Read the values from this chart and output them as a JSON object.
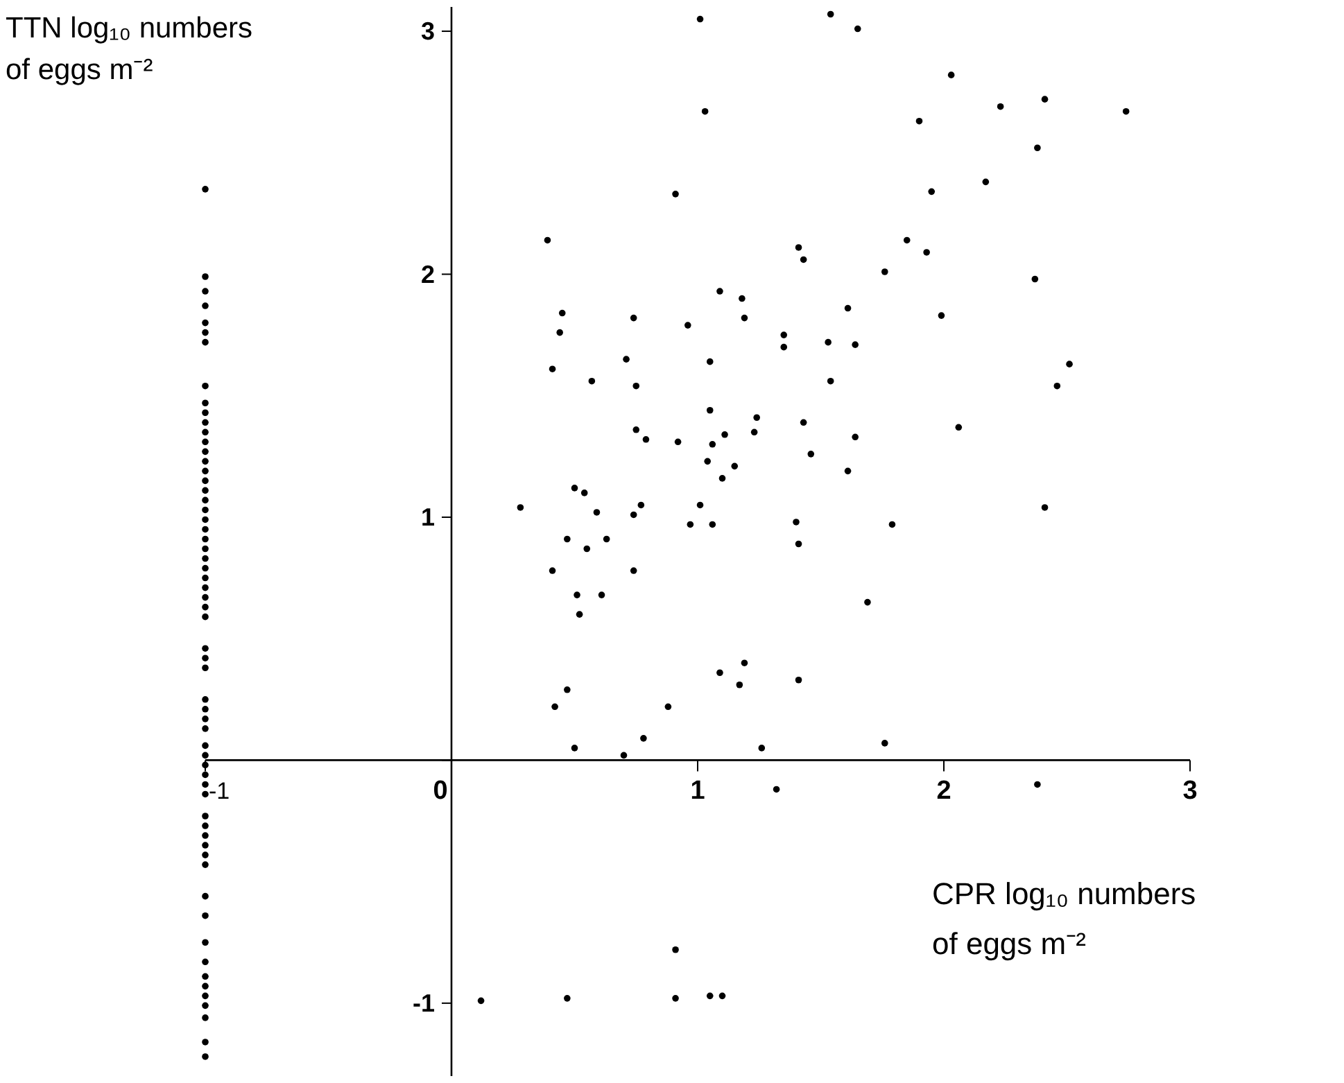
{
  "chart_data": {
    "type": "scatter",
    "xlabel": "CPR log₁₀ numbers of eggs m⁻²",
    "ylabel": "TTN log₁₀ numbers of eggs m⁻²",
    "xlim": [
      -1,
      3
    ],
    "ylim": [
      -1.3,
      3.1
    ],
    "xticks": [
      -1,
      0,
      1,
      2,
      3
    ],
    "yticks": [
      -1,
      {
        "value": 0,
        "label": null
      },
      1,
      2,
      3
    ],
    "grid": false,
    "marker": "circle",
    "series": [
      {
        "color": "#000000",
        "x": [
          -1,
          -1,
          -1,
          -1,
          -1,
          -1,
          -1,
          -1,
          -1,
          -1,
          -1,
          -1,
          -1,
          -1,
          -1,
          -1,
          -1,
          -1,
          -1,
          -1,
          -1,
          -1,
          -1,
          -1,
          -1,
          -1,
          -1,
          -1,
          -1,
          -1,
          -1,
          -1,
          -1,
          -1,
          -1,
          -1,
          -1,
          -1,
          -1,
          -1,
          -1,
          -1,
          -1,
          -1,
          -1,
          -1,
          -1,
          -1,
          -1,
          -1,
          -1,
          -1,
          -1,
          -1,
          -1,
          -1,
          -1,
          -1,
          -1,
          -1,
          -1,
          1.01,
          1.54,
          1.65,
          2.03,
          2.23,
          2.41,
          2.74,
          1.03,
          1.9,
          2.38,
          2.17,
          1.95,
          0.91,
          1.85,
          1.93,
          1.76,
          2.37,
          1.41,
          1.43,
          1.09,
          1.18,
          1.19,
          0.96,
          1.61,
          1.99,
          1.35,
          1.35,
          1.53,
          1.64,
          1.05,
          2.51,
          2.46,
          1.54,
          1.05,
          1.24,
          1.43,
          0.92,
          1.06,
          1.11,
          1.23,
          1.64,
          2.06,
          1.46,
          1.04,
          1.15,
          1.1,
          1.61,
          1.01,
          2.41,
          0.97,
          1.06,
          1.4,
          1.79,
          0.39,
          0.45,
          0.44,
          0.41,
          0.74,
          0.71,
          0.57,
          0.75,
          0.75,
          0.79,
          0.28,
          0.5,
          0.54,
          0.59,
          0.77,
          0.74,
          0.47,
          0.63,
          0.55,
          0.41,
          0.74,
          0.51,
          0.61,
          0.52,
          0.47,
          0.42,
          0.88,
          0.78,
          0.5,
          0.7,
          0.12,
          0.47,
          1.41,
          1.69,
          1.09,
          1.19,
          1.17,
          1.41,
          1.26,
          1.76,
          1.32,
          2.38,
          0.91,
          0.91,
          1.05,
          1.1
        ],
        "values": [
          2.35,
          1.99,
          1.93,
          1.87,
          1.8,
          1.76,
          1.72,
          1.54,
          1.47,
          1.43,
          1.39,
          1.35,
          1.31,
          1.27,
          1.23,
          1.19,
          1.15,
          1.11,
          1.07,
          1.03,
          0.99,
          0.95,
          0.91,
          0.87,
          0.83,
          0.79,
          0.75,
          0.71,
          0.67,
          0.63,
          0.59,
          0.46,
          0.42,
          0.38,
          0.25,
          0.21,
          0.17,
          0.13,
          0.06,
          0.02,
          -0.02,
          -0.06,
          -0.1,
          -0.14,
          -0.23,
          -0.27,
          -0.31,
          -0.35,
          -0.39,
          -0.43,
          -0.56,
          -0.64,
          -0.75,
          -0.83,
          -0.89,
          -0.93,
          -0.97,
          -1.01,
          -1.06,
          -1.16,
          -1.22,
          3.05,
          3.07,
          3.01,
          2.82,
          2.69,
          2.72,
          2.67,
          2.67,
          2.63,
          2.52,
          2.38,
          2.34,
          2.33,
          2.14,
          2.09,
          2.01,
          1.98,
          2.11,
          2.06,
          1.93,
          1.9,
          1.82,
          1.79,
          1.86,
          1.83,
          1.75,
          1.7,
          1.72,
          1.71,
          1.64,
          1.63,
          1.54,
          1.56,
          1.44,
          1.41,
          1.39,
          1.31,
          1.3,
          1.34,
          1.35,
          1.33,
          1.37,
          1.26,
          1.23,
          1.21,
          1.16,
          1.19,
          1.05,
          1.04,
          0.97,
          0.97,
          0.98,
          0.97,
          2.14,
          1.84,
          1.76,
          1.61,
          1.82,
          1.65,
          1.56,
          1.54,
          1.36,
          1.32,
          1.04,
          1.12,
          1.1,
          1.02,
          1.05,
          1.01,
          0.91,
          0.91,
          0.87,
          0.78,
          0.78,
          0.68,
          0.68,
          0.6,
          0.29,
          0.22,
          0.22,
          0.09,
          0.05,
          0.02,
          -0.99,
          -0.98,
          0.89,
          0.65,
          0.36,
          0.4,
          0.31,
          0.33,
          0.05,
          0.07,
          -0.12,
          -0.1,
          -0.78,
          -0.98,
          -0.97,
          -0.97
        ]
      }
    ]
  }
}
